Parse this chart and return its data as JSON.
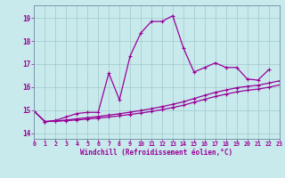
{
  "bg_color": "#c8eaec",
  "grid_color": "#a0c8cc",
  "line_color": "#990099",
  "xlabel": "Windchill (Refroidissement éolien,°C)",
  "xmin": 0,
  "xmax": 23,
  "ymin": 13.75,
  "ymax": 19.55,
  "yticks": [
    14,
    15,
    16,
    17,
    18,
    19
  ],
  "xticks": [
    0,
    1,
    2,
    3,
    4,
    5,
    6,
    7,
    8,
    9,
    10,
    11,
    12,
    13,
    14,
    15,
    16,
    17,
    18,
    19,
    20,
    21,
    22,
    23
  ],
  "main_x": [
    0,
    1,
    2,
    3,
    4,
    5,
    6,
    7,
    8,
    9,
    10,
    11,
    12,
    13,
    14,
    15,
    16,
    17,
    18,
    19,
    20,
    21,
    22
  ],
  "main_y": [
    14.95,
    14.5,
    14.55,
    14.7,
    14.85,
    14.9,
    14.9,
    16.6,
    15.45,
    17.35,
    18.35,
    18.85,
    18.85,
    19.1,
    17.7,
    16.65,
    16.85,
    17.05,
    16.85,
    16.85,
    16.35,
    16.3,
    16.75
  ],
  "line2_x": [
    0,
    1,
    2,
    3,
    4,
    5,
    6,
    7,
    8,
    9,
    10,
    11,
    12,
    13,
    14,
    15,
    16,
    17,
    18,
    19,
    20,
    21,
    22,
    23
  ],
  "line2_y": [
    14.95,
    14.5,
    14.52,
    14.57,
    14.62,
    14.67,
    14.72,
    14.78,
    14.84,
    14.91,
    14.98,
    15.06,
    15.15,
    15.25,
    15.36,
    15.5,
    15.64,
    15.77,
    15.87,
    15.97,
    16.03,
    16.08,
    16.17,
    16.27
  ],
  "line3_x": [
    0,
    1,
    2,
    3,
    4,
    5,
    6,
    7,
    8,
    9,
    10,
    11,
    12,
    13,
    14,
    15,
    16,
    17,
    18,
    19,
    20,
    21,
    22,
    23
  ],
  "line3_y": [
    14.95,
    14.5,
    14.51,
    14.54,
    14.57,
    14.61,
    14.65,
    14.7,
    14.75,
    14.81,
    14.87,
    14.94,
    15.02,
    15.11,
    15.21,
    15.34,
    15.47,
    15.59,
    15.69,
    15.79,
    15.86,
    15.91,
    15.99,
    16.09
  ]
}
